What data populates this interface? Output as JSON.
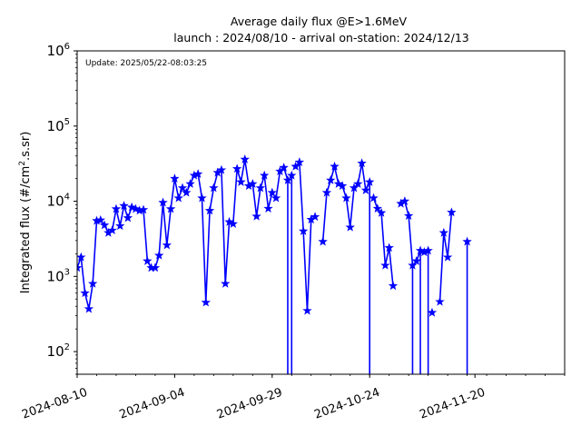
{
  "chart_data": {
    "type": "line",
    "title": "Average daily flux @E>1.6MeV",
    "subtitle": "launch : 2024/08/10 - arrival on-station: 2024/12/13",
    "ylabel_prefix": "Integrated flux (#/cm",
    "ylabel_sup": "2",
    "ylabel_suffix": ".s.sr)",
    "annotation": "Update: 2025/05/22-08:03:25",
    "y_scale": "log",
    "ylim": [
      50,
      1000000
    ],
    "xlim": [
      "2024-08-10",
      "2024-12-13"
    ],
    "y_ticks": [
      {
        "value": 100,
        "base": "10",
        "exp": "2"
      },
      {
        "value": 1000,
        "base": "10",
        "exp": "3"
      },
      {
        "value": 10000,
        "base": "10",
        "exp": "4"
      },
      {
        "value": 100000,
        "base": "10",
        "exp": "5"
      },
      {
        "value": 1000000,
        "base": "10",
        "exp": "6"
      }
    ],
    "x_ticks": [
      {
        "date": "2024-08-10",
        "label": "2024-08-10"
      },
      {
        "date": "2024-09-04",
        "label": "2024-09-04"
      },
      {
        "date": "2024-09-29",
        "label": "2024-09-29"
      },
      {
        "date": "2024-10-24",
        "label": "2024-10-24"
      },
      {
        "date": "2024-11-20",
        "label": "2024-11-20"
      }
    ],
    "grid": false,
    "line_color": "#0000ff",
    "series": [
      {
        "marker": "star",
        "x": [
          "2024-08-10",
          "2024-08-11",
          "2024-08-12",
          "2024-08-13",
          "2024-08-14",
          "2024-08-15",
          "2024-08-16",
          "2024-08-17",
          "2024-08-18",
          "2024-08-19",
          "2024-08-20",
          "2024-08-21",
          "2024-08-22",
          "2024-08-23",
          "2024-08-24",
          "2024-08-25",
          "2024-08-26",
          "2024-08-27",
          "2024-08-28",
          "2024-08-29",
          "2024-08-30",
          "2024-08-31",
          "2024-09-01",
          "2024-09-02",
          "2024-09-03",
          "2024-09-04",
          "2024-09-05",
          "2024-09-06",
          "2024-09-07",
          "2024-09-08",
          "2024-09-09",
          "2024-09-10",
          "2024-09-11",
          "2024-09-12",
          "2024-09-13",
          "2024-09-14",
          "2024-09-15",
          "2024-09-16",
          "2024-09-17",
          "2024-09-18",
          "2024-09-19",
          "2024-09-20",
          "2024-09-21",
          "2024-09-22",
          "2024-09-23",
          "2024-09-24",
          "2024-09-25",
          "2024-09-26",
          "2024-09-27",
          "2024-09-28",
          "2024-09-29",
          "2024-09-30",
          "2024-10-01",
          "2024-10-02",
          "2024-10-03",
          "2024-10-04",
          "2024-10-05",
          "2024-10-06",
          "2024-10-07",
          "2024-10-08",
          "2024-10-09",
          "2024-10-10",
          "2024-10-11",
          "2024-10-12",
          "2024-10-13",
          "2024-10-14",
          "2024-10-15",
          "2024-10-16",
          "2024-10-17",
          "2024-10-18",
          "2024-10-19",
          "2024-10-20",
          "2024-10-21",
          "2024-10-22",
          "2024-10-23",
          "2024-10-24",
          "2024-10-25",
          "2024-10-26",
          "2024-10-27",
          "2024-10-28",
          "2024-10-29",
          "2024-10-30",
          "2024-10-31",
          "2024-11-01",
          "2024-11-02",
          "2024-11-03",
          "2024-11-04",
          "2024-11-05",
          "2024-11-06",
          "2024-11-07",
          "2024-11-08",
          "2024-11-09",
          "2024-11-10",
          "2024-11-11",
          "2024-11-12",
          "2024-11-13",
          "2024-11-14",
          "2024-11-15",
          "2024-11-16",
          "2024-11-17",
          "2024-11-18",
          "2024-11-19",
          "2024-11-20"
        ],
        "y": [
          1300,
          1800,
          600,
          370,
          800,
          5500,
          5600,
          4800,
          3800,
          4100,
          7900,
          4700,
          8700,
          6000,
          8300,
          7900,
          7500,
          7700,
          1600,
          1300,
          1300,
          1900,
          9600,
          2600,
          7900,
          20000,
          11000,
          15000,
          13000,
          17000,
          22000,
          23000,
          11000,
          450,
          7500,
          15000,
          24000,
          26000,
          800,
          5300,
          5000,
          27000,
          18000,
          36000,
          16000,
          17000,
          6300,
          15000,
          22000,
          8000,
          13000,
          11000,
          25000,
          28000,
          19000,
          22000,
          29000,
          33000,
          4000,
          350,
          5700,
          6200,
          null,
          2900,
          13000,
          19000,
          29000,
          17000,
          16000,
          11000,
          4500,
          15000,
          17000,
          32000,
          14000,
          18000,
          11000,
          8000,
          7000,
          1400,
          2400,
          750,
          null,
          9300,
          10000,
          6400,
          1400,
          1600,
          2200,
          2100,
          2200,
          330,
          null,
          460,
          3800,
          1800,
          7100,
          null,
          null,
          null,
          null,
          null,
          null
        ],
        "drop_after": [
          "2024-10-03",
          "2024-10-04",
          "2024-10-24",
          "2024-11-04",
          "2024-11-06",
          "2024-11-08"
        ],
        "isolated": [
          {
            "x": "2024-11-18",
            "y": 2900
          }
        ]
      }
    ]
  }
}
